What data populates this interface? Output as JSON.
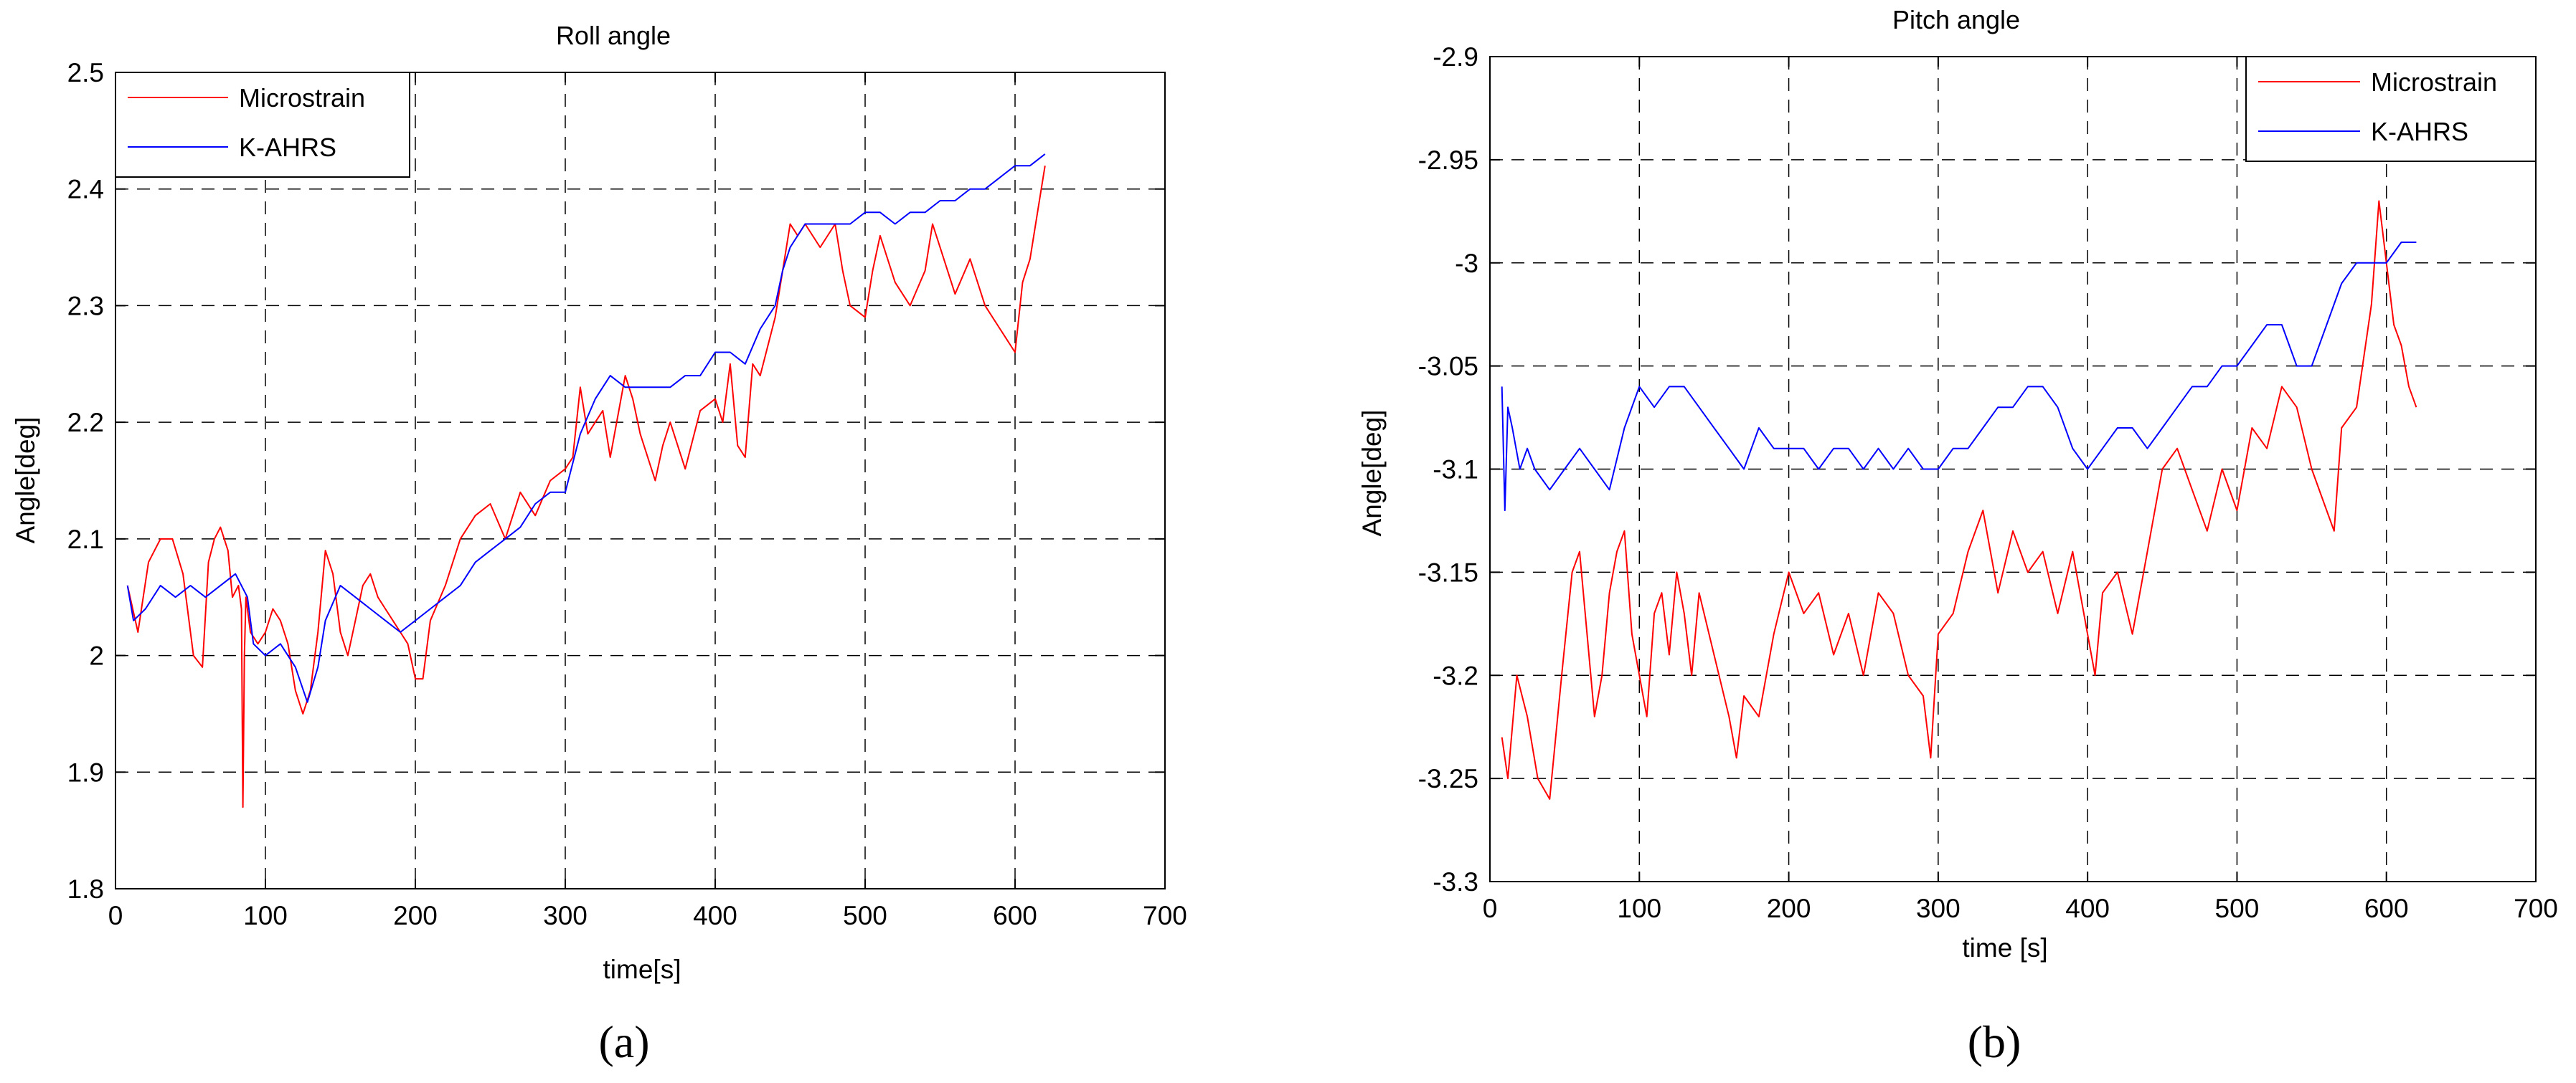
{
  "panels": [
    {
      "label": "(a)",
      "chart_data": {
        "type": "line",
        "title": "Roll angle",
        "xlabel": "time[s]",
        "ylabel": "Angle[deg]",
        "xlim": [
          0,
          700
        ],
        "ylim": [
          1.8,
          2.5
        ],
        "xticks": [
          0,
          100,
          200,
          300,
          400,
          500,
          600,
          700
        ],
        "yticks": [
          1.8,
          1.9,
          2.0,
          2.1,
          2.2,
          2.3,
          2.4,
          2.5
        ],
        "xtick_labels": [
          "0",
          "100",
          "200",
          "300",
          "400",
          "500",
          "600",
          "700"
        ],
        "ytick_labels": [
          "1.8",
          "1.9",
          "2",
          "2.1",
          "2.2",
          "2.3",
          "2.4",
          "2.5"
        ],
        "grid": true,
        "legend": "top-left",
        "series": [
          {
            "name": "Microstrain",
            "color": "#ff0000",
            "x": [
              8,
              15,
              22,
              30,
              38,
              45,
              52,
              58,
              62,
              66,
              70,
              75,
              78,
              82,
              84,
              85,
              86,
              87,
              90,
              95,
              100,
              105,
              110,
              115,
              120,
              125,
              130,
              135,
              140,
              145,
              150,
              155,
              160,
              165,
              170,
              175,
              180,
              185,
              190,
              195,
              200,
              205,
              210,
              220,
              230,
              240,
              250,
              260,
              270,
              280,
              290,
              300,
              305,
              310,
              315,
              320,
              325,
              330,
              340,
              345,
              350,
              360,
              365,
              370,
              380,
              390,
              400,
              405,
              410,
              415,
              420,
              425,
              430,
              440,
              450,
              455,
              460,
              470,
              480,
              485,
              490,
              500,
              505,
              510,
              520,
              530,
              540,
              545,
              550,
              560,
              570,
              580,
              590,
              600,
              605,
              610,
              615,
              620
            ],
            "y": [
              2.06,
              2.02,
              2.08,
              2.1,
              2.1,
              2.07,
              2.0,
              1.99,
              2.08,
              2.1,
              2.11,
              2.09,
              2.05,
              2.06,
              2.04,
              1.87,
              2.0,
              2.05,
              2.02,
              2.01,
              2.02,
              2.04,
              2.03,
              2.01,
              1.97,
              1.95,
              1.97,
              2.02,
              2.09,
              2.07,
              2.02,
              2.0,
              2.03,
              2.06,
              2.07,
              2.05,
              2.04,
              2.03,
              2.02,
              2.01,
              1.98,
              1.98,
              2.03,
              2.06,
              2.1,
              2.12,
              2.13,
              2.1,
              2.14,
              2.12,
              2.15,
              2.16,
              2.17,
              2.23,
              2.19,
              2.2,
              2.21,
              2.17,
              2.24,
              2.22,
              2.19,
              2.15,
              2.18,
              2.2,
              2.16,
              2.21,
              2.22,
              2.2,
              2.25,
              2.18,
              2.17,
              2.25,
              2.24,
              2.29,
              2.37,
              2.36,
              2.37,
              2.35,
              2.37,
              2.33,
              2.3,
              2.29,
              2.33,
              2.36,
              2.32,
              2.3,
              2.33,
              2.37,
              2.35,
              2.31,
              2.34,
              2.3,
              2.28,
              2.26,
              2.32,
              2.34,
              2.38,
              2.42
            ]
          },
          {
            "name": "K-AHRS",
            "color": "#0000ff",
            "x": [
              8,
              12,
              20,
              30,
              40,
              50,
              60,
              70,
              80,
              88,
              92,
              100,
              110,
              120,
              128,
              135,
              140,
              150,
              160,
              170,
              180,
              190,
              200,
              210,
              220,
              230,
              240,
              250,
              260,
              270,
              280,
              290,
              300,
              310,
              320,
              330,
              340,
              350,
              360,
              370,
              380,
              390,
              400,
              410,
              420,
              430,
              440,
              445,
              450,
              460,
              470,
              480,
              490,
              500,
              510,
              520,
              530,
              540,
              550,
              560,
              570,
              580,
              590,
              600,
              610,
              620
            ],
            "y": [
              2.06,
              2.03,
              2.04,
              2.06,
              2.05,
              2.06,
              2.05,
              2.06,
              2.07,
              2.05,
              2.01,
              2.0,
              2.01,
              1.99,
              1.96,
              1.99,
              2.03,
              2.06,
              2.05,
              2.04,
              2.03,
              2.02,
              2.03,
              2.04,
              2.05,
              2.06,
              2.08,
              2.09,
              2.1,
              2.11,
              2.13,
              2.14,
              2.14,
              2.19,
              2.22,
              2.24,
              2.23,
              2.23,
              2.23,
              2.23,
              2.24,
              2.24,
              2.26,
              2.26,
              2.25,
              2.28,
              2.3,
              2.33,
              2.35,
              2.37,
              2.37,
              2.37,
              2.37,
              2.38,
              2.38,
              2.37,
              2.38,
              2.38,
              2.39,
              2.39,
              2.4,
              2.4,
              2.41,
              2.42,
              2.42,
              2.43
            ]
          }
        ]
      }
    },
    {
      "label": "(b)",
      "chart_data": {
        "type": "line",
        "title": "Pitch angle",
        "xlabel": "time [s]",
        "ylabel": "Angle[deg]",
        "xlim": [
          0,
          700
        ],
        "ylim": [
          -3.3,
          -2.9
        ],
        "xticks": [
          0,
          100,
          200,
          300,
          400,
          500,
          600,
          700
        ],
        "yticks": [
          -3.3,
          -3.25,
          -3.2,
          -3.15,
          -3.1,
          -3.05,
          -3.0,
          -2.95,
          -2.9
        ],
        "xtick_labels": [
          "0",
          "100",
          "200",
          "300",
          "400",
          "500",
          "600",
          "700"
        ],
        "ytick_labels": [
          "-3.3",
          "-3.25",
          "-3.2",
          "-3.15",
          "-3.1",
          "-3.05",
          "-3",
          "-2.95",
          "-2.9"
        ],
        "grid": true,
        "legend": "top-right",
        "series": [
          {
            "name": "Microstrain",
            "color": "#ff0000",
            "x": [
              8,
              12,
              18,
              25,
              32,
              40,
              48,
              55,
              60,
              65,
              70,
              75,
              80,
              85,
              90,
              95,
              100,
              105,
              110,
              115,
              120,
              125,
              130,
              135,
              140,
              150,
              160,
              165,
              170,
              180,
              190,
              200,
              210,
              220,
              230,
              240,
              250,
              260,
              270,
              280,
              290,
              295,
              300,
              310,
              320,
              330,
              340,
              350,
              360,
              370,
              380,
              390,
              400,
              405,
              410,
              420,
              430,
              440,
              450,
              460,
              470,
              480,
              490,
              500,
              510,
              520,
              530,
              540,
              550,
              560,
              565,
              570,
              580,
              590,
              595,
              600,
              605,
              610,
              615,
              620
            ],
            "y": [
              -3.23,
              -3.25,
              -3.2,
              -3.22,
              -3.25,
              -3.26,
              -3.2,
              -3.15,
              -3.14,
              -3.18,
              -3.22,
              -3.2,
              -3.16,
              -3.14,
              -3.13,
              -3.18,
              -3.2,
              -3.22,
              -3.17,
              -3.16,
              -3.19,
              -3.15,
              -3.17,
              -3.2,
              -3.16,
              -3.19,
              -3.22,
              -3.24,
              -3.21,
              -3.22,
              -3.18,
              -3.15,
              -3.17,
              -3.16,
              -3.19,
              -3.17,
              -3.2,
              -3.16,
              -3.17,
              -3.2,
              -3.21,
              -3.24,
              -3.18,
              -3.17,
              -3.14,
              -3.12,
              -3.16,
              -3.13,
              -3.15,
              -3.14,
              -3.17,
              -3.14,
              -3.18,
              -3.2,
              -3.16,
              -3.15,
              -3.18,
              -3.14,
              -3.1,
              -3.09,
              -3.11,
              -3.13,
              -3.1,
              -3.12,
              -3.08,
              -3.09,
              -3.06,
              -3.07,
              -3.1,
              -3.12,
              -3.13,
              -3.08,
              -3.07,
              -3.02,
              -2.97,
              -3.0,
              -3.03,
              -3.04,
              -3.06,
              -3.07
            ]
          },
          {
            "name": "K-AHRS",
            "color": "#0000ff",
            "x": [
              8,
              10,
              12,
              15,
              20,
              25,
              30,
              40,
              50,
              60,
              70,
              80,
              90,
              95,
              100,
              110,
              120,
              130,
              140,
              150,
              160,
              170,
              180,
              190,
              200,
              210,
              220,
              230,
              240,
              250,
              260,
              270,
              280,
              290,
              300,
              310,
              320,
              330,
              340,
              350,
              360,
              370,
              380,
              390,
              400,
              410,
              420,
              430,
              440,
              450,
              460,
              470,
              480,
              490,
              500,
              510,
              520,
              530,
              540,
              550,
              560,
              570,
              580,
              590,
              600,
              610,
              620
            ],
            "y": [
              -3.06,
              -3.12,
              -3.07,
              -3.08,
              -3.1,
              -3.09,
              -3.1,
              -3.11,
              -3.1,
              -3.09,
              -3.1,
              -3.11,
              -3.08,
              -3.07,
              -3.06,
              -3.07,
              -3.06,
              -3.06,
              -3.07,
              -3.08,
              -3.09,
              -3.1,
              -3.08,
              -3.09,
              -3.09,
              -3.09,
              -3.1,
              -3.09,
              -3.09,
              -3.1,
              -3.09,
              -3.1,
              -3.09,
              -3.1,
              -3.1,
              -3.09,
              -3.09,
              -3.08,
              -3.07,
              -3.07,
              -3.06,
              -3.06,
              -3.07,
              -3.09,
              -3.1,
              -3.09,
              -3.08,
              -3.08,
              -3.09,
              -3.08,
              -3.07,
              -3.06,
              -3.06,
              -3.05,
              -3.05,
              -3.04,
              -3.03,
              -3.03,
              -3.05,
              -3.05,
              -3.03,
              -3.01,
              -3.0,
              -3.0,
              -3.0,
              -2.99,
              -2.99
            ]
          }
        ]
      }
    }
  ]
}
